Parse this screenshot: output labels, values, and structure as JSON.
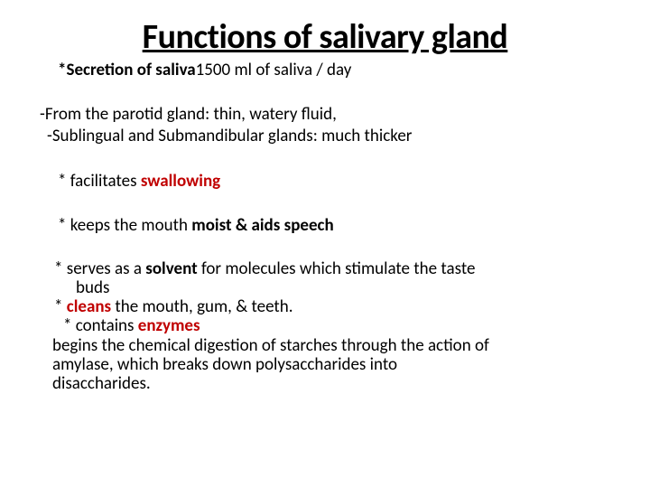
{
  "colors": {
    "text": "#000000",
    "background": "#ffffff",
    "accent_red": "#c00000"
  },
  "title": "Functions of salivary gland",
  "secretion_prefix": "*Secretion of saliva",
  "secretion_amount": "1500 ml of saliva ",
  "secretion_suffix": "/ day",
  "parotid_line": "-From the parotid gland: thin, watery fluid,",
  "sublingual_line": "-Sublingual and Submandibular glands: much thicker",
  "facilitates_prefix": "* facilitates ",
  "facilitates_word": "swallowing",
  "moist_prefix": "* keeps the mouth ",
  "moist_bold": "moist & aids speech",
  "solvent_prefix": "* serves as a ",
  "solvent_word": "solvent",
  "solvent_suffix": " for molecules which stimulate the taste",
  "buds": "buds",
  "cleans_star": "* ",
  "cleans_word": "cleans",
  "cleans_suffix": " the mouth, gum, & teeth.",
  "enzymes_prefix": "* contains  ",
  "enzymes_word": "enzymes",
  "digestion_l1": "begins the chemical digestion of starches through the action of",
  "digestion_l2": "amylase, which breaks down polysaccharides into",
  "digestion_l3": "disaccharides."
}
